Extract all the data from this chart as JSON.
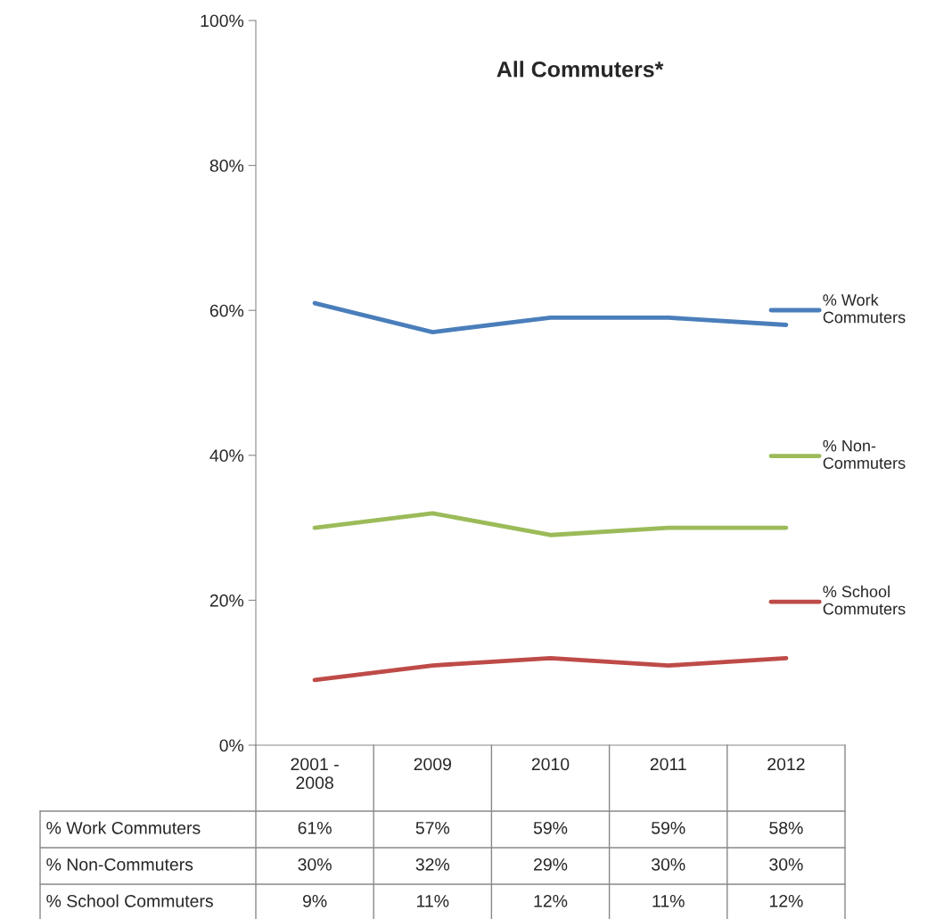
{
  "chart_data": {
    "type": "line",
    "title": "All Commuters*",
    "categories": [
      "2001 - 2008",
      "2009",
      "2010",
      "2011",
      "2012"
    ],
    "series": [
      {
        "name": "% Work Commuters",
        "color": "#4a7ebb",
        "values": [
          61,
          57,
          59,
          59,
          58
        ],
        "value_labels": [
          "61%",
          "57%",
          "59%",
          "59%",
          "58%"
        ]
      },
      {
        "name": "% Non-Commuters",
        "color": "#9bbb59",
        "values": [
          30,
          32,
          29,
          30,
          30
        ],
        "value_labels": [
          "30%",
          "32%",
          "29%",
          "30%",
          "30%"
        ]
      },
      {
        "name": "% School Commuters",
        "color": "#be4b48",
        "values": [
          9,
          11,
          12,
          11,
          12
        ],
        "value_labels": [
          "9%",
          "11%",
          "12%",
          "11%",
          "12%"
        ]
      }
    ],
    "ylim": [
      0,
      100
    ],
    "yticks": [
      {
        "value": 0,
        "label": "0%"
      },
      {
        "value": 20,
        "label": "20%"
      },
      {
        "value": 40,
        "label": "40%"
      },
      {
        "value": 60,
        "label": "60%"
      },
      {
        "value": 80,
        "label": "80%"
      },
      {
        "value": 100,
        "label": "100%"
      }
    ],
    "legend": "right",
    "grid": false,
    "marker": "none",
    "line_style": "solid"
  }
}
